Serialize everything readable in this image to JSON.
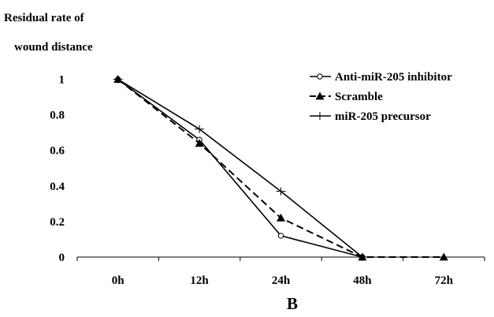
{
  "chart_data": {
    "type": "line",
    "ylabel_lines": [
      "Residual rate of",
      "wound distance"
    ],
    "panel_label": "B",
    "categories": [
      "0h",
      "12h",
      "24h",
      "48h",
      "72h"
    ],
    "yticks": [
      "0",
      "0.2",
      "0.4",
      "0.6",
      "0.8",
      "1"
    ],
    "ylim": [
      0,
      1.1
    ],
    "grid": false,
    "legend_position": "top-right",
    "series": [
      {
        "name": "Anti-miR-205 inhibitor",
        "marker": "open-circle",
        "line": "solid",
        "values": [
          1.0,
          0.66,
          0.12,
          0.0,
          null
        ]
      },
      {
        "name": "Scramble",
        "marker": "filled-triangle",
        "line": "dashed",
        "values": [
          1.0,
          0.64,
          0.22,
          0.0,
          0.0
        ]
      },
      {
        "name": "miR-205 precursor",
        "marker": "cross",
        "line": "solid",
        "values": [
          1.0,
          0.72,
          0.37,
          0.0,
          null
        ]
      }
    ]
  }
}
